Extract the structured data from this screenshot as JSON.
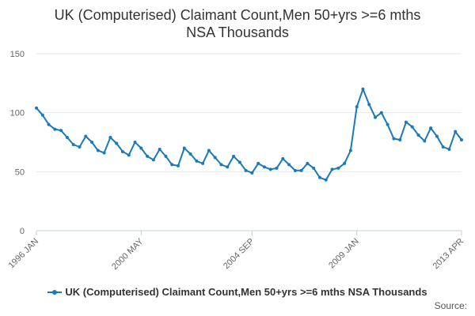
{
  "chart_data": {
    "type": "line",
    "title_line1": "UK (Computerised) Claimant Count,Men 50+yrs >=6 mths",
    "title_line2": "NSA Thousands",
    "ylim": [
      0,
      150
    ],
    "yticks": [
      0,
      50,
      100,
      150
    ],
    "xlabels": [
      "1996 JAN",
      "2000 MAY",
      "2004 SEP",
      "2009 JAN",
      "2013 APR"
    ],
    "grid": true,
    "legend_position": "bottom",
    "color": "#1a7ab8",
    "series": [
      {
        "name": "UK (Computerised) Claimant Count,Men 50+yrs >=6 mths NSA Thousands",
        "x": [
          "1996 JAN",
          "1996 APR",
          "1996 JUL",
          "1996 OCT",
          "1997 JAN",
          "1997 APR",
          "1997 JUL",
          "1997 OCT",
          "1998 JAN",
          "1998 APR",
          "1998 JUL",
          "1998 OCT",
          "1999 JAN",
          "1999 APR",
          "1999 JUL",
          "1999 OCT",
          "2000 JAN",
          "2000 APR",
          "2000 JUL",
          "2000 OCT",
          "2001 JAN",
          "2001 APR",
          "2001 JUL",
          "2001 OCT",
          "2002 JAN",
          "2002 APR",
          "2002 JUL",
          "2002 OCT",
          "2003 JAN",
          "2003 APR",
          "2003 JUL",
          "2003 OCT",
          "2004 JAN",
          "2004 APR",
          "2004 JUL",
          "2004 OCT",
          "2005 JAN",
          "2005 APR",
          "2005 JUL",
          "2005 OCT",
          "2006 JAN",
          "2006 APR",
          "2006 JUL",
          "2006 OCT",
          "2007 JAN",
          "2007 APR",
          "2007 JUL",
          "2007 OCT",
          "2008 JAN",
          "2008 APR",
          "2008 JUL",
          "2008 OCT",
          "2009 JAN",
          "2009 APR",
          "2009 JUL",
          "2009 OCT",
          "2010 JAN",
          "2010 APR",
          "2010 JUL",
          "2010 OCT",
          "2011 JAN",
          "2011 APR",
          "2011 JUL",
          "2011 OCT",
          "2012 JAN",
          "2012 APR",
          "2012 JUL",
          "2012 OCT",
          "2013 JAN",
          "2013 APR"
        ],
        "values": [
          104,
          98,
          90,
          86,
          85,
          79,
          73,
          71,
          80,
          75,
          68,
          66,
          79,
          74,
          67,
          64,
          75,
          70,
          63,
          60,
          69,
          63,
          56,
          55,
          70,
          65,
          59,
          57,
          68,
          62,
          56,
          54,
          63,
          58,
          51,
          49,
          57,
          54,
          52,
          53,
          61,
          56,
          51,
          51,
          57,
          53,
          45,
          43,
          52,
          53,
          57,
          68,
          105,
          120,
          107,
          96,
          100,
          90,
          78,
          77,
          92,
          88,
          81,
          76,
          87,
          80,
          71,
          69,
          84,
          77
        ]
      }
    ],
    "source_label": "Source:"
  }
}
